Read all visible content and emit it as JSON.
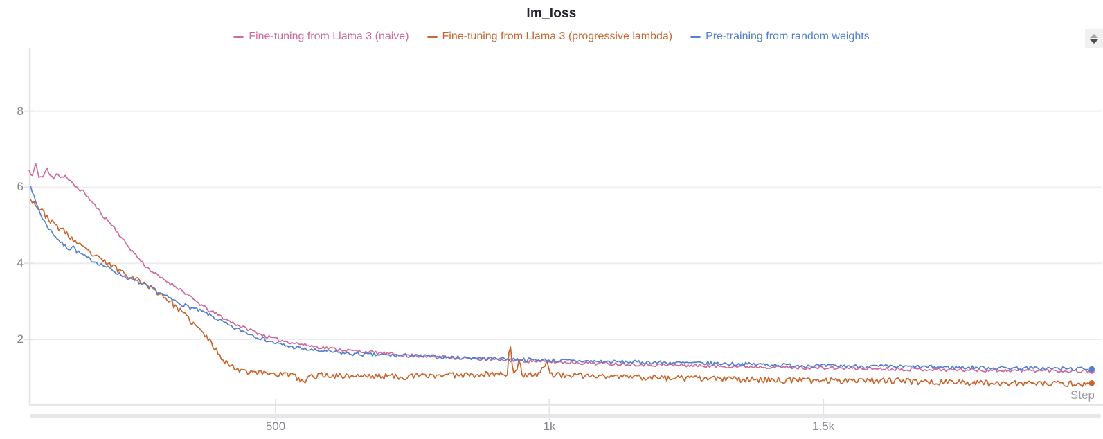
{
  "chart_data": {
    "type": "line",
    "title": "lm_loss",
    "xlabel": "Step",
    "ylabel": "",
    "xlim": [
      50,
      2008
    ],
    "ylim": [
      0.29,
      9.65
    ],
    "grid": true,
    "legend_position": "top-center",
    "x_ticks": [
      {
        "value": 500,
        "label": "500"
      },
      {
        "value": 1000,
        "label": "1k"
      },
      {
        "value": 1500,
        "label": "1.5k"
      }
    ],
    "y_ticks": [
      {
        "value": 2,
        "label": "2"
      },
      {
        "value": 4,
        "label": "4"
      },
      {
        "value": 6,
        "label": "6"
      },
      {
        "value": 8,
        "label": "8"
      }
    ],
    "series": [
      {
        "name": "Fine-tuning from Llama 3 (naive)",
        "color": "#cf6a9e",
        "noise_amp": 0.04,
        "down_bias": 1.2,
        "seed": 11,
        "end_dot": true,
        "points": [
          [
            50,
            6.45
          ],
          [
            55,
            6.25
          ],
          [
            62,
            6.6
          ],
          [
            68,
            6.3
          ],
          [
            75,
            6.25
          ],
          [
            82,
            6.5
          ],
          [
            88,
            6.3
          ],
          [
            95,
            6.25
          ],
          [
            100,
            6.4
          ],
          [
            108,
            6.25
          ],
          [
            115,
            6.32
          ],
          [
            122,
            6.2
          ],
          [
            132,
            6.05
          ],
          [
            142,
            5.95
          ],
          [
            152,
            5.85
          ],
          [
            162,
            5.65
          ],
          [
            172,
            5.5
          ],
          [
            182,
            5.3
          ],
          [
            192,
            5.15
          ],
          [
            205,
            4.95
          ],
          [
            215,
            4.75
          ],
          [
            228,
            4.5
          ],
          [
            240,
            4.3
          ],
          [
            252,
            4.1
          ],
          [
            265,
            3.9
          ],
          [
            278,
            3.75
          ],
          [
            292,
            3.6
          ],
          [
            305,
            3.5
          ],
          [
            320,
            3.38
          ],
          [
            335,
            3.22
          ],
          [
            350,
            3.05
          ],
          [
            365,
            2.9
          ],
          [
            380,
            2.75
          ],
          [
            395,
            2.65
          ],
          [
            410,
            2.52
          ],
          [
            425,
            2.42
          ],
          [
            440,
            2.32
          ],
          [
            455,
            2.25
          ],
          [
            470,
            2.15
          ],
          [
            490,
            2.05
          ],
          [
            510,
            1.97
          ],
          [
            530,
            1.92
          ],
          [
            555,
            1.85
          ],
          [
            580,
            1.8
          ],
          [
            610,
            1.75
          ],
          [
            640,
            1.7
          ],
          [
            670,
            1.67
          ],
          [
            700,
            1.63
          ],
          [
            730,
            1.6
          ],
          [
            760,
            1.57
          ],
          [
            790,
            1.55
          ],
          [
            830,
            1.52
          ],
          [
            870,
            1.49
          ],
          [
            910,
            1.47
          ],
          [
            950,
            1.44
          ],
          [
            1000,
            1.41
          ],
          [
            1050,
            1.39
          ],
          [
            1100,
            1.37
          ],
          [
            1150,
            1.35
          ],
          [
            1200,
            1.33
          ],
          [
            1250,
            1.32
          ],
          [
            1300,
            1.3
          ],
          [
            1350,
            1.29
          ],
          [
            1400,
            1.28
          ],
          [
            1450,
            1.26
          ],
          [
            1500,
            1.25
          ],
          [
            1550,
            1.24
          ],
          [
            1600,
            1.23
          ],
          [
            1650,
            1.22
          ],
          [
            1700,
            1.21
          ],
          [
            1750,
            1.2
          ],
          [
            1800,
            1.19
          ],
          [
            1850,
            1.18
          ],
          [
            1900,
            1.18
          ],
          [
            1950,
            1.17
          ],
          [
            1990,
            1.17
          ]
        ]
      },
      {
        "name": "Fine-tuning from Llama 3 (progressive lambda)",
        "color": "#c9662e",
        "noise_amp": 0.055,
        "down_bias": 1.8,
        "seed": 23,
        "end_dot": true,
        "points": [
          [
            53,
            5.75
          ],
          [
            60,
            5.58
          ],
          [
            68,
            5.45
          ],
          [
            76,
            5.35
          ],
          [
            85,
            5.2
          ],
          [
            95,
            5.05
          ],
          [
            105,
            4.95
          ],
          [
            115,
            4.85
          ],
          [
            125,
            4.7
          ],
          [
            135,
            4.58
          ],
          [
            148,
            4.42
          ],
          [
            160,
            4.3
          ],
          [
            172,
            4.18
          ],
          [
            185,
            4.08
          ],
          [
            198,
            3.98
          ],
          [
            212,
            3.86
          ],
          [
            226,
            3.74
          ],
          [
            240,
            3.64
          ],
          [
            255,
            3.52
          ],
          [
            270,
            3.4
          ],
          [
            285,
            3.26
          ],
          [
            300,
            3.1
          ],
          [
            312,
            2.95
          ],
          [
            325,
            2.78
          ],
          [
            338,
            2.6
          ],
          [
            350,
            2.42
          ],
          [
            362,
            2.25
          ],
          [
            374,
            2.08
          ],
          [
            386,
            1.85
          ],
          [
            396,
            1.65
          ],
          [
            404,
            1.5
          ],
          [
            412,
            1.38
          ],
          [
            420,
            1.3
          ],
          [
            430,
            1.24
          ],
          [
            440,
            1.2
          ],
          [
            455,
            1.17
          ],
          [
            470,
            1.14
          ],
          [
            490,
            1.12
          ],
          [
            510,
            1.1
          ],
          [
            530,
            1.08
          ],
          [
            545,
            0.95
          ],
          [
            552,
            0.85
          ],
          [
            560,
            1.02
          ],
          [
            580,
            1.08
          ],
          [
            610,
            1.06
          ],
          [
            640,
            1.05
          ],
          [
            670,
            1.04
          ],
          [
            700,
            1.05
          ],
          [
            730,
            1.03
          ],
          [
            760,
            1.05
          ],
          [
            790,
            1.06
          ],
          [
            820,
            1.08
          ],
          [
            850,
            1.09
          ],
          [
            880,
            1.1
          ],
          [
            910,
            1.1
          ],
          [
            923,
            1.12
          ],
          [
            928,
            1.95
          ],
          [
            933,
            1.15
          ],
          [
            940,
            1.12
          ],
          [
            945,
            1.5
          ],
          [
            950,
            1.1
          ],
          [
            980,
            1.1
          ],
          [
            996,
            1.45
          ],
          [
            1002,
            1.08
          ],
          [
            1010,
            1.08
          ],
          [
            1050,
            1.06
          ],
          [
            1090,
            1.04
          ],
          [
            1130,
            1.03
          ],
          [
            1170,
            1.02
          ],
          [
            1210,
            1.0
          ],
          [
            1250,
            0.99
          ],
          [
            1290,
            0.98
          ],
          [
            1330,
            0.97
          ],
          [
            1370,
            0.96
          ],
          [
            1410,
            0.95
          ],
          [
            1450,
            0.94
          ],
          [
            1490,
            0.93
          ],
          [
            1530,
            0.94
          ],
          [
            1570,
            0.95
          ],
          [
            1610,
            0.94
          ],
          [
            1650,
            0.92
          ],
          [
            1690,
            0.9
          ],
          [
            1730,
            0.89
          ],
          [
            1770,
            0.88
          ],
          [
            1810,
            0.87
          ],
          [
            1850,
            0.86
          ],
          [
            1890,
            0.85
          ],
          [
            1930,
            0.85
          ],
          [
            1990,
            0.85
          ]
        ]
      },
      {
        "name": "Pre-training from random weights",
        "color": "#5480d2",
        "noise_amp": 0.045,
        "down_bias": 1.2,
        "seed": 7,
        "end_dot": true,
        "points": [
          [
            53,
            6.07
          ],
          [
            57,
            5.85
          ],
          [
            62,
            5.6
          ],
          [
            67,
            5.45
          ],
          [
            72,
            5.25
          ],
          [
            78,
            5.1
          ],
          [
            85,
            4.95
          ],
          [
            92,
            4.82
          ],
          [
            100,
            4.68
          ],
          [
            108,
            4.55
          ],
          [
            116,
            4.45
          ],
          [
            124,
            4.38
          ],
          [
            130,
            4.48
          ],
          [
            136,
            4.32
          ],
          [
            145,
            4.25
          ],
          [
            155,
            4.15
          ],
          [
            165,
            4.08
          ],
          [
            175,
            4.02
          ],
          [
            185,
            3.95
          ],
          [
            195,
            3.88
          ],
          [
            210,
            3.76
          ],
          [
            225,
            3.65
          ],
          [
            240,
            3.56
          ],
          [
            255,
            3.48
          ],
          [
            270,
            3.36
          ],
          [
            285,
            3.25
          ],
          [
            300,
            3.13
          ],
          [
            315,
            3.02
          ],
          [
            330,
            2.92
          ],
          [
            345,
            2.84
          ],
          [
            360,
            2.76
          ],
          [
            375,
            2.68
          ],
          [
            390,
            2.56
          ],
          [
            405,
            2.45
          ],
          [
            420,
            2.32
          ],
          [
            435,
            2.25
          ],
          [
            450,
            2.16
          ],
          [
            465,
            2.08
          ],
          [
            480,
            2.0
          ],
          [
            500,
            1.9
          ],
          [
            520,
            1.83
          ],
          [
            540,
            1.78
          ],
          [
            560,
            1.73
          ],
          [
            580,
            1.7
          ],
          [
            610,
            1.66
          ],
          [
            640,
            1.62
          ],
          [
            670,
            1.6
          ],
          [
            710,
            1.58
          ],
          [
            750,
            1.57
          ],
          [
            790,
            1.55
          ],
          [
            840,
            1.52
          ],
          [
            890,
            1.5
          ],
          [
            940,
            1.48
          ],
          [
            1000,
            1.45
          ],
          [
            1060,
            1.43
          ],
          [
            1120,
            1.41
          ],
          [
            1180,
            1.4
          ],
          [
            1240,
            1.38
          ],
          [
            1300,
            1.37
          ],
          [
            1360,
            1.35
          ],
          [
            1420,
            1.33
          ],
          [
            1480,
            1.31
          ],
          [
            1540,
            1.3
          ],
          [
            1600,
            1.29
          ],
          [
            1660,
            1.28
          ],
          [
            1720,
            1.27
          ],
          [
            1780,
            1.26
          ],
          [
            1840,
            1.25
          ],
          [
            1900,
            1.24
          ],
          [
            1950,
            1.23
          ],
          [
            1990,
            1.22
          ]
        ]
      }
    ],
    "style": {
      "grid_color": "#ededef",
      "axis_color": "#e3e3e5",
      "tick_label_color": "#85858e",
      "scrollbar_color": "#e7e7e9"
    }
  }
}
